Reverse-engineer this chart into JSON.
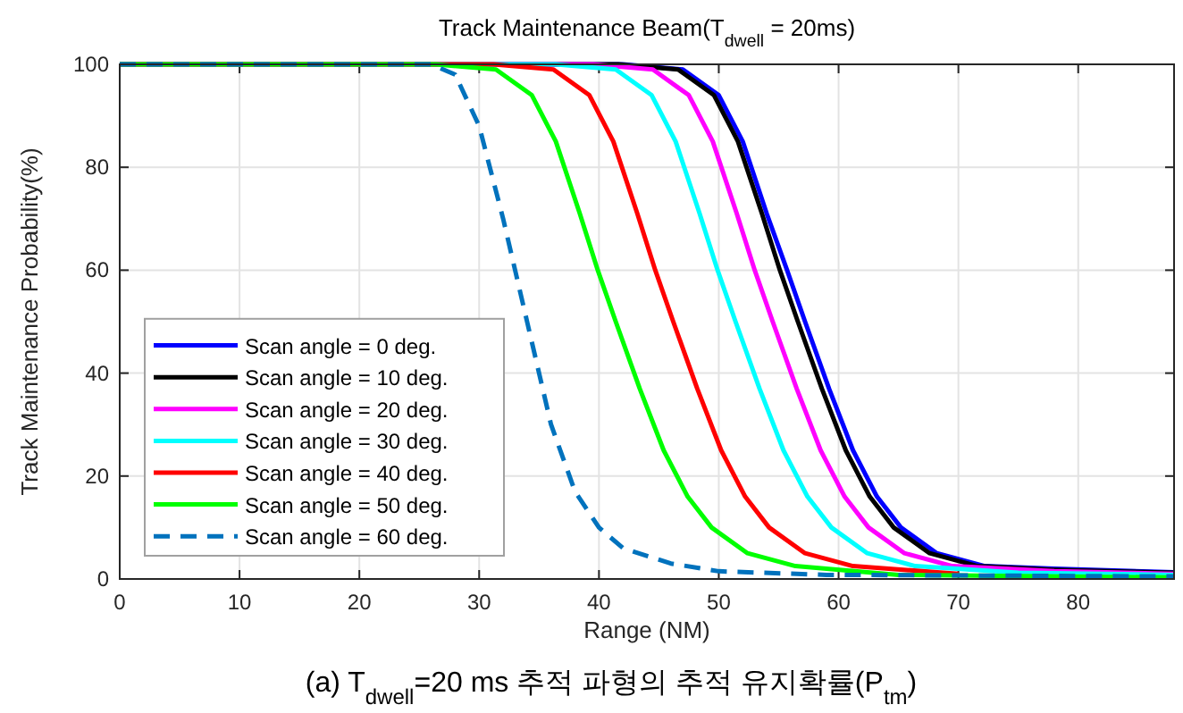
{
  "chart_data": {
    "type": "line",
    "title": "Track Maintenance Beam(T$_{dwell}$ = 20ms)",
    "xlabel": "Range (NM)",
    "ylabel": "Track Maintenance Probability(%)",
    "annotations": [
      "(a) T$_{dwell}$=20 ms 추적 파형의 추적 유지확률(P$_{tm}$)"
    ],
    "xlim": [
      0,
      88
    ],
    "ylim": [
      0,
      100
    ],
    "xticks": [
      0,
      10,
      20,
      30,
      40,
      50,
      60,
      70,
      80
    ],
    "yticks": [
      0,
      20,
      40,
      60,
      80,
      100
    ],
    "grid": true,
    "legend": "bottom left",
    "series": [
      {
        "name": "Scan angle = 0 deg.",
        "color": "#0000ff",
        "line_style": "solid",
        "x": [
          0,
          42,
          47,
          50,
          52,
          54,
          55.7,
          57.2,
          59.2,
          61.2,
          63.2,
          65.2,
          68.2,
          72.2,
          78,
          88
        ],
        "values": [
          100,
          100,
          99,
          94,
          85,
          71,
          60,
          50,
          37,
          25,
          16,
          10,
          5,
          2.5,
          2,
          1.3
        ]
      },
      {
        "name": "Scan angle = 10 deg.",
        "color": "#000000",
        "line_style": "solid",
        "x": [
          0,
          41.6,
          46.6,
          49.6,
          51.6,
          53.6,
          55.1,
          56.6,
          58.6,
          60.6,
          62.6,
          64.6,
          67.6,
          71.6,
          78,
          88
        ],
        "values": [
          100,
          100,
          99,
          94,
          85,
          71,
          60,
          50,
          37,
          25,
          16,
          10,
          5,
          2.5,
          1.8,
          1.2
        ]
      },
      {
        "name": "Scan angle = 20 deg.",
        "color": "#ff00ff",
        "line_style": "solid",
        "x": [
          0,
          39.5,
          44.5,
          47.5,
          49.5,
          51.5,
          53,
          54.5,
          56.5,
          58.5,
          60.5,
          62.5,
          65.5,
          69.5,
          78,
          88
        ],
        "values": [
          100,
          100,
          99,
          94,
          85,
          71,
          60,
          50,
          37,
          25,
          16,
          10,
          5,
          2.5,
          1.5,
          1
        ]
      },
      {
        "name": "Scan angle = 30 deg.",
        "color": "#00ffff",
        "line_style": "solid",
        "x": [
          0,
          36.4,
          41.4,
          44.4,
          46.4,
          48.4,
          49.9,
          51.4,
          53.4,
          55.4,
          57.4,
          59.4,
          62.4,
          66.4,
          75,
          88
        ],
        "values": [
          100,
          100,
          99,
          94,
          85,
          71,
          60,
          50,
          37,
          25,
          16,
          10,
          5,
          2.5,
          1.2,
          0.8
        ]
      },
      {
        "name": "Scan angle = 40 deg.",
        "color": "#ff0000",
        "line_style": "solid",
        "x": [
          0,
          31.2,
          36.2,
          39.2,
          41.2,
          43.2,
          44.7,
          46.2,
          48.2,
          50.2,
          52.2,
          54.2,
          57.2,
          61.2,
          70
        ],
        "values": [
          100,
          100,
          99,
          94,
          85,
          71,
          60,
          50,
          37,
          25,
          16,
          10,
          5,
          2.5,
          1
        ]
      },
      {
        "name": "Scan angle = 50 deg.",
        "color": "#00ff00",
        "line_style": "solid",
        "x": [
          0,
          26.4,
          31.4,
          34.4,
          36.4,
          38.4,
          39.9,
          41.4,
          43.4,
          45.4,
          47.4,
          49.4,
          52.4,
          56.4,
          65,
          88
        ],
        "values": [
          100,
          100,
          99,
          94,
          85,
          71,
          60,
          50,
          37,
          25,
          16,
          10,
          5,
          2.5,
          0.8,
          0.3
        ]
      },
      {
        "name": "Scan angle = 60 deg.",
        "color": "#0072bd",
        "line_style": "dashed",
        "x": [
          0,
          26,
          28,
          30,
          32,
          34,
          36,
          38,
          40,
          42,
          46,
          50,
          59,
          88
        ],
        "values": [
          100,
          100,
          98,
          88,
          70,
          50,
          30,
          17,
          10,
          6,
          3,
          1.5,
          0.8,
          0.5
        ]
      }
    ]
  }
}
